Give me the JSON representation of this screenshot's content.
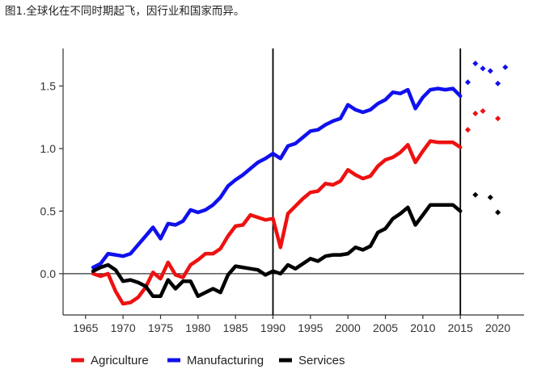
{
  "caption": "图1.全球化在不同时期起飞，因行业和国家而异。",
  "chart_data": {
    "type": "line",
    "title": "",
    "xlabel": "",
    "ylabel": "",
    "xlim": [
      1962,
      2023.5
    ],
    "ylim": [
      -0.33,
      1.8
    ],
    "xticks": [
      1965,
      1970,
      1975,
      1980,
      1985,
      1990,
      1995,
      2000,
      2005,
      2010,
      2015,
      2020
    ],
    "yticks": [
      0.0,
      0.5,
      1.0,
      1.5
    ],
    "ytick_labels": [
      "0.0",
      "0.5",
      "1.0",
      "1.5"
    ],
    "vlines": [
      1990,
      2015
    ],
    "hline": 0,
    "legend_position": "bottom",
    "series": [
      {
        "name": "Agriculture",
        "color": "#ee1111",
        "x": [
          1966,
          1967,
          1968,
          1969,
          1970,
          1971,
          1972,
          1973,
          1974,
          1975,
          1976,
          1977,
          1978,
          1979,
          1980,
          1981,
          1982,
          1983,
          1984,
          1985,
          1986,
          1987,
          1988,
          1989,
          1990,
          1991,
          1992,
          1993,
          1994,
          1995,
          1996,
          1997,
          1998,
          1999,
          2000,
          2001,
          2002,
          2003,
          2004,
          2005,
          2006,
          2007,
          2008,
          2009,
          2010,
          2011,
          2012,
          2013,
          2014,
          2015
        ],
        "values": [
          0.0,
          -0.02,
          0.0,
          -0.14,
          -0.24,
          -0.23,
          -0.19,
          -0.11,
          0.01,
          -0.04,
          0.09,
          -0.01,
          -0.03,
          0.07,
          0.11,
          0.16,
          0.16,
          0.2,
          0.3,
          0.38,
          0.39,
          0.47,
          0.45,
          0.43,
          0.44,
          0.21,
          0.48,
          0.54,
          0.6,
          0.65,
          0.66,
          0.72,
          0.71,
          0.74,
          0.83,
          0.79,
          0.76,
          0.78,
          0.86,
          0.91,
          0.93,
          0.97,
          1.03,
          0.89,
          0.98,
          1.06,
          1.05,
          1.05,
          1.05,
          1.01
        ],
        "projection_x": [
          2016,
          2017,
          2018,
          2020
        ],
        "projection_values": [
          1.15,
          1.28,
          1.3,
          1.24
        ]
      },
      {
        "name": "Manufacturing",
        "color": "#1010ee",
        "x": [
          1966,
          1967,
          1968,
          1969,
          1970,
          1971,
          1972,
          1973,
          1974,
          1975,
          1976,
          1977,
          1978,
          1979,
          1980,
          1981,
          1982,
          1983,
          1984,
          1985,
          1986,
          1987,
          1988,
          1989,
          1990,
          1991,
          1992,
          1993,
          1994,
          1995,
          1996,
          1997,
          1998,
          1999,
          2000,
          2001,
          2002,
          2003,
          2004,
          2005,
          2006,
          2007,
          2008,
          2009,
          2010,
          2011,
          2012,
          2013,
          2014,
          2015
        ],
        "values": [
          0.05,
          0.08,
          0.16,
          0.15,
          0.14,
          0.16,
          0.23,
          0.3,
          0.37,
          0.28,
          0.4,
          0.39,
          0.42,
          0.51,
          0.49,
          0.51,
          0.55,
          0.61,
          0.7,
          0.75,
          0.79,
          0.84,
          0.89,
          0.92,
          0.96,
          0.92,
          1.02,
          1.04,
          1.09,
          1.14,
          1.15,
          1.19,
          1.22,
          1.24,
          1.35,
          1.31,
          1.29,
          1.31,
          1.36,
          1.39,
          1.45,
          1.44,
          1.47,
          1.32,
          1.41,
          1.47,
          1.48,
          1.47,
          1.48,
          1.42
        ],
        "projection_x": [
          2016,
          2017,
          2018,
          2019,
          2020,
          2021
        ],
        "projection_values": [
          1.53,
          1.68,
          1.64,
          1.62,
          1.52,
          1.65
        ]
      },
      {
        "name": "Services",
        "color": "#000000",
        "x": [
          1966,
          1967,
          1968,
          1969,
          1970,
          1971,
          1972,
          1973,
          1974,
          1975,
          1976,
          1977,
          1978,
          1979,
          1980,
          1981,
          1982,
          1983,
          1984,
          1985,
          1986,
          1987,
          1988,
          1989,
          1990,
          1991,
          1992,
          1993,
          1994,
          1995,
          1996,
          1997,
          1998,
          1999,
          2000,
          2001,
          2002,
          2003,
          2004,
          2005,
          2006,
          2007,
          2008,
          2009,
          2010,
          2011,
          2012,
          2013,
          2014,
          2015
        ],
        "values": [
          0.02,
          0.05,
          0.07,
          0.03,
          -0.06,
          -0.05,
          -0.07,
          -0.1,
          -0.18,
          -0.18,
          -0.05,
          -0.12,
          -0.06,
          -0.06,
          -0.18,
          -0.15,
          -0.12,
          -0.15,
          -0.01,
          0.06,
          0.05,
          0.04,
          0.03,
          -0.01,
          0.02,
          0.0,
          0.07,
          0.04,
          0.08,
          0.12,
          0.1,
          0.14,
          0.15,
          0.15,
          0.16,
          0.21,
          0.19,
          0.22,
          0.33,
          0.36,
          0.44,
          0.48,
          0.53,
          0.39,
          0.47,
          0.55,
          0.55,
          0.55,
          0.55,
          0.5
        ],
        "projection_x": [
          2017,
          2019,
          2020
        ],
        "projection_values": [
          0.63,
          0.61,
          0.49
        ]
      }
    ]
  }
}
